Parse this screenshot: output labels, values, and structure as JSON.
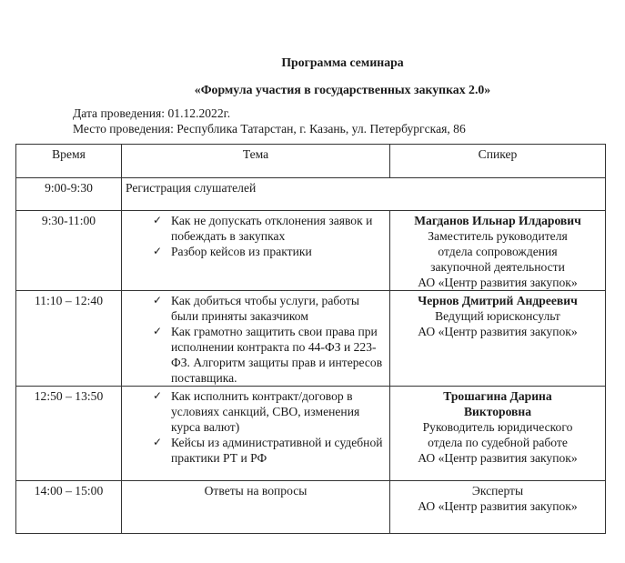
{
  "title": "Программа семинара",
  "subtitle": "«Формула участия в государственных закупках 2.0»",
  "date_line": "Дата проведения: 01.12.2022г.",
  "place_line": "Место проведения: Республика Татарстан, г. Казань, ул. Петербургская, 86",
  "table": {
    "headers": [
      "Время",
      "Тема",
      "Спикер"
    ],
    "rows": [
      {
        "time": "9:00-9:30",
        "topic": "Регистрация слушателей"
      },
      {
        "time": "9:30-11:00",
        "items": [
          "Как не допускать отклонения заявок и побеждать в закупках",
          "Разбор кейсов из практики"
        ],
        "speaker_name": "Магданов Ильнар Илдарович",
        "speaker_role": "Заместитель руководителя отдела сопровождения закупочной деятельности",
        "speaker_org": "АО «Центр развития закупок»"
      },
      {
        "time": "11:10 – 12:40",
        "items": [
          "Как добиться чтобы услуги, работы были приняты заказчиком",
          "Как грамотно защитить свои права при исполнении контракта по 44-ФЗ и 223-ФЗ. Алгоритм защиты прав и интересов поставщика."
        ],
        "speaker_name": "Чернов Дмитрий Андреевич",
        "speaker_role": "Ведущий юрисконсульт",
        "speaker_org": "АО «Центр развития закупок»"
      },
      {
        "time": "12:50 – 13:50",
        "items": [
          "Как исполнить контракт/договор в условиях санкций, СВО, изменения курса валют)",
          "Кейсы из административной и судебной практики РТ и РФ"
        ],
        "speaker_name": "Трошагина Дарина Викторовна",
        "speaker_role": "Руководитель юридического отдела по судебной работе",
        "speaker_org": "АО «Центр развития закупок»"
      },
      {
        "time": "14:00 – 15:00",
        "topic": "Ответы на вопросы",
        "speaker_role": "Эксперты",
        "speaker_org": "АО «Центр развития закупок»"
      }
    ]
  },
  "checkmark": "✓"
}
